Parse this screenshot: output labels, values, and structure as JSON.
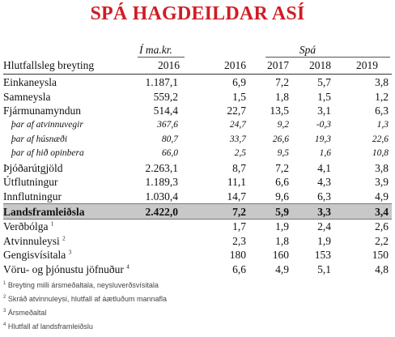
{
  "title": "SPÁ HAGDEILDAR ASÍ",
  "header": {
    "unit": "Í ma.kr.",
    "forecast": "Spá",
    "row_label": "Hlutfallsleg breyting",
    "years": [
      "2016",
      "2016",
      "2017",
      "2018",
      "2019"
    ]
  },
  "rows": [
    {
      "label": "Einkaneysla",
      "note": "",
      "style": "normal",
      "values": [
        "1.187,1",
        "6,9",
        "7,2",
        "5,7",
        "3,8"
      ]
    },
    {
      "label": "Samneysla",
      "note": "",
      "style": "normal",
      "values": [
        "559,2",
        "1,5",
        "1,8",
        "1,5",
        "1,2"
      ]
    },
    {
      "label": "Fjármunamyndun",
      "note": "",
      "style": "normal",
      "values": [
        "514,4",
        "22,7",
        "13,5",
        "3,1",
        "6,3"
      ]
    },
    {
      "label": "þar af atvinnuvegir",
      "note": "",
      "style": "sub",
      "values": [
        "367,6",
        "24,7",
        "9,2",
        "-0,3",
        "1,3"
      ]
    },
    {
      "label": "þar af húsnæði",
      "note": "",
      "style": "sub",
      "values": [
        "80,7",
        "33,7",
        "26,6",
        "19,3",
        "22,6"
      ]
    },
    {
      "label": "þar af hið opinbera",
      "note": "",
      "style": "sub",
      "values": [
        "66,0",
        "2,5",
        "9,5",
        "1,6",
        "10,8"
      ]
    },
    {
      "label": "Þjóðarútgjöld",
      "note": "",
      "style": "normal",
      "values": [
        "2.263,1",
        "8,7",
        "7,2",
        "4,1",
        "3,8"
      ]
    },
    {
      "label": "Útflutningur",
      "note": "",
      "style": "normal",
      "values": [
        "1.189,3",
        "11,1",
        "6,6",
        "4,3",
        "3,9"
      ]
    },
    {
      "label": "Innflutningur",
      "note": "",
      "style": "normal",
      "values": [
        "1.030,4",
        "14,7",
        "9,6",
        "6,3",
        "4,9"
      ]
    },
    {
      "label": "Landsframleiðsla",
      "note": "",
      "style": "total",
      "values": [
        "2.422,0",
        "7,2",
        "5,9",
        "3,3",
        "3,4"
      ]
    },
    {
      "label": "Verðbólga",
      "note": "1",
      "style": "normal",
      "values": [
        "",
        "1,7",
        "1,9",
        "2,4",
        "2,6"
      ]
    },
    {
      "label": "Atvinnuleysi",
      "note": "2",
      "style": "normal",
      "values": [
        "",
        "2,3",
        "1,8",
        "1,9",
        "2,2"
      ]
    },
    {
      "label": "Gengisvísitala",
      "note": "3",
      "style": "normal",
      "values": [
        "",
        "180",
        "160",
        "153",
        "150"
      ]
    },
    {
      "label": "Vöru- og þjónustu jöfnuður",
      "note": "4",
      "style": "normal",
      "values": [
        "",
        "6,6",
        "4,9",
        "5,1",
        "4,8"
      ]
    }
  ],
  "footnotes": [
    {
      "num": "1",
      "text": "Breyting milli ársmeðaltala, neysluverðsvísitala"
    },
    {
      "num": "2",
      "text": "Skráð atvinnuleysi, hlutfall af áætluðum mannafla"
    },
    {
      "num": "3",
      "text": "Ársmeðaltal"
    },
    {
      "num": "4",
      "text": "Hlutfall af landsframleiðslu"
    }
  ]
}
